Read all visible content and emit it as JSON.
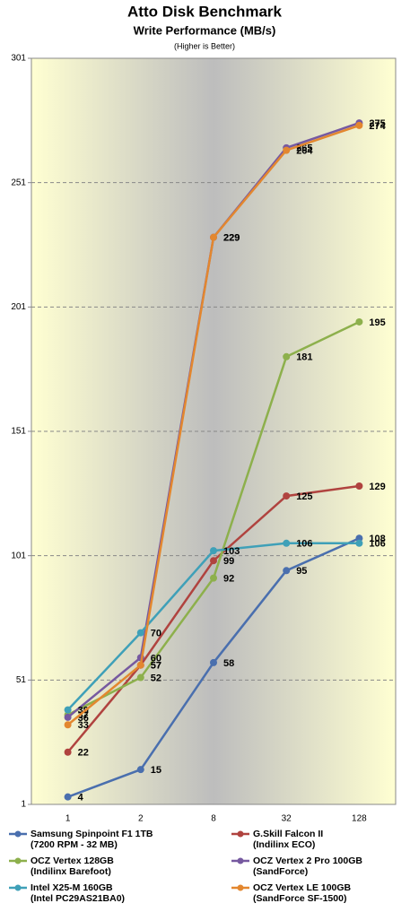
{
  "chart_data": {
    "type": "line",
    "title": "Atto Disk Benchmark",
    "subtitle": "Write Performance (MB/s)",
    "note": "(Higher is Better)",
    "categories": [
      "1",
      "2",
      "8",
      "32",
      "128"
    ],
    "ylim": [
      1,
      301
    ],
    "yticks": [
      1,
      51,
      101,
      151,
      201,
      251,
      301
    ],
    "grid": true,
    "series": [
      {
        "name": "Samsung Spinpoint F1 1TB\n(7200 RPM - 32 MB)",
        "color": "#4a6fae",
        "values": [
          4,
          15,
          58,
          95,
          108
        ]
      },
      {
        "name": "G.Skill Falcon II\n(Indilinx ECO)",
        "color": "#b0433f",
        "values": [
          22,
          57,
          99,
          125,
          129
        ]
      },
      {
        "name": "OCZ Vertex 128GB\n(Indilinx Barefoot)",
        "color": "#8db04c",
        "values": [
          37,
          52,
          92,
          181,
          195
        ]
      },
      {
        "name": "OCZ Vertex 2 Pro 100GB\n(SandForce)",
        "color": "#7659a0",
        "values": [
          36,
          60,
          229,
          265,
          275
        ]
      },
      {
        "name": "Intel X25-M 160GB\n(Intel PC29AS21BA0)",
        "color": "#3fa0b8",
        "values": [
          39,
          70,
          103,
          106,
          106
        ]
      },
      {
        "name": "OCZ Vertex LE 100GB\n(SandForce SF-1500)",
        "color": "#e3872f",
        "values": [
          33,
          57,
          229,
          264,
          274
        ]
      }
    ]
  }
}
